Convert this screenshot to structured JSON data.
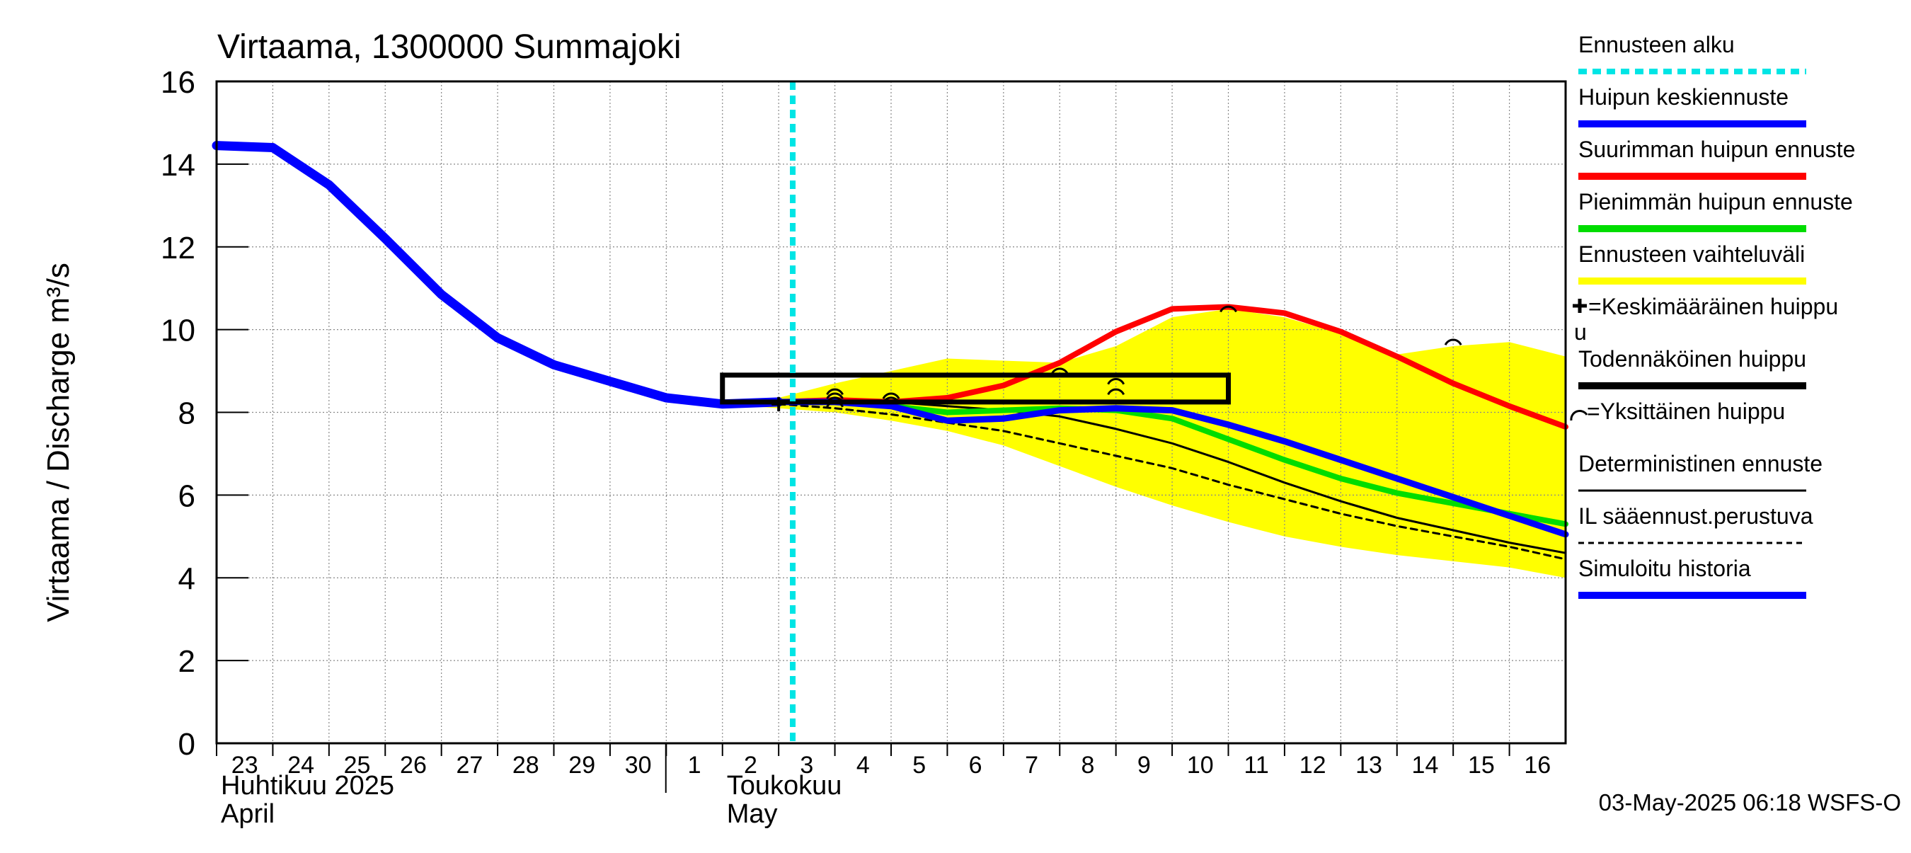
{
  "chart_data": {
    "type": "line",
    "title": "Virtaama, 1300000 Summajoki",
    "ylabel": "Virtaama / Discharge    m³/s",
    "ylim": [
      0,
      16
    ],
    "yticks": [
      0,
      2,
      4,
      6,
      8,
      10,
      12,
      14,
      16
    ],
    "grid": true,
    "legend_position": "right",
    "x_start": "2025-04-23",
    "x_end": "2025-05-17",
    "day_labels": [
      "23",
      "24",
      "25",
      "26",
      "27",
      "28",
      "29",
      "30",
      "1",
      "2",
      "3",
      "4",
      "5",
      "6",
      "7",
      "8",
      "9",
      "10",
      "11",
      "12",
      "13",
      "14",
      "15",
      "16"
    ],
    "month_labels": [
      {
        "fi": "Huhtikuu  2025",
        "en": "April",
        "date": "2025-04-23"
      },
      {
        "fi": "Toukokuu",
        "en": "May",
        "date": "2025-05-02"
      }
    ],
    "forecast_start": "2025-05-03T06:00",
    "timestamp": "03-May-2025 06:18 WSFS-O",
    "probable_peak_box": {
      "x0": "2025-05-02",
      "x1": "2025-05-11",
      "y0": 8.25,
      "y1": 8.9
    },
    "series": [
      {
        "name": "Ennusteen vaihteluväli",
        "kind": "band",
        "color": "#ffff00",
        "x": [
          "2025-05-02",
          "2025-05-03",
          "2025-05-04",
          "2025-05-05",
          "2025-05-06",
          "2025-05-07",
          "2025-05-08",
          "2025-05-09",
          "2025-05-10",
          "2025-05-11",
          "2025-05-12",
          "2025-05-13",
          "2025-05-14",
          "2025-05-15",
          "2025-05-16",
          "2025-05-17"
        ],
        "upper": [
          8.25,
          8.35,
          8.7,
          9.0,
          9.3,
          9.25,
          9.2,
          9.6,
          10.3,
          10.5,
          10.3,
          9.9,
          9.4,
          9.6,
          9.7,
          9.35
        ],
        "lower": [
          8.2,
          8.1,
          8.0,
          7.8,
          7.55,
          7.2,
          6.7,
          6.2,
          5.75,
          5.35,
          5.0,
          4.75,
          4.55,
          4.4,
          4.25,
          4.0
        ]
      },
      {
        "name": "Simuloitu historia",
        "color": "#0000ff",
        "x": [
          "2025-04-23",
          "2025-04-24",
          "2025-04-25",
          "2025-04-26",
          "2025-04-27",
          "2025-04-28",
          "2025-04-29",
          "2025-04-30",
          "2025-05-01",
          "2025-05-02",
          "2025-05-03"
        ],
        "values": [
          14.45,
          14.4,
          13.5,
          12.2,
          10.85,
          9.8,
          9.15,
          8.75,
          8.35,
          8.2,
          8.25
        ]
      },
      {
        "name": "Deterministinen ennuste",
        "color": "#000000",
        "x": [
          "2025-05-03",
          "2025-05-04",
          "2025-05-05",
          "2025-05-06",
          "2025-05-07",
          "2025-05-08",
          "2025-05-09",
          "2025-05-10",
          "2025-05-11",
          "2025-05-12",
          "2025-05-13",
          "2025-05-14",
          "2025-05-15",
          "2025-05-16",
          "2025-05-17"
        ],
        "values": [
          8.25,
          8.3,
          8.25,
          8.15,
          8.05,
          7.9,
          7.6,
          7.25,
          6.8,
          6.3,
          5.85,
          5.45,
          5.15,
          4.85,
          4.6
        ]
      },
      {
        "name": "IL sääennust.perustuva",
        "color": "#000000",
        "dashed": true,
        "x": [
          "2025-05-03",
          "2025-05-04",
          "2025-05-05",
          "2025-05-06",
          "2025-05-07",
          "2025-05-08",
          "2025-05-09",
          "2025-05-10",
          "2025-05-11",
          "2025-05-12",
          "2025-05-13",
          "2025-05-14",
          "2025-05-15",
          "2025-05-16",
          "2025-05-17"
        ],
        "values": [
          8.2,
          8.1,
          7.95,
          7.75,
          7.55,
          7.25,
          6.95,
          6.65,
          6.25,
          5.9,
          5.55,
          5.25,
          5.0,
          4.75,
          4.45
        ]
      },
      {
        "name": "Pienimmän huipun ennuste",
        "color": "#00dd00",
        "x": [
          "2025-05-03",
          "2025-05-04",
          "2025-05-05",
          "2025-05-06",
          "2025-05-07",
          "2025-05-08",
          "2025-05-09",
          "2025-05-10",
          "2025-05-11",
          "2025-05-12",
          "2025-05-13",
          "2025-05-14",
          "2025-05-15",
          "2025-05-16",
          "2025-05-17"
        ],
        "values": [
          8.25,
          8.25,
          8.15,
          8.0,
          8.05,
          8.1,
          8.05,
          7.85,
          7.35,
          6.85,
          6.4,
          6.05,
          5.8,
          5.55,
          5.3
        ]
      },
      {
        "name": "Suurimman huipun ennuste",
        "color": "#ff0000",
        "x": [
          "2025-05-03",
          "2025-05-04",
          "2025-05-05",
          "2025-05-06",
          "2025-05-07",
          "2025-05-08",
          "2025-05-09",
          "2025-05-10",
          "2025-05-11",
          "2025-05-12",
          "2025-05-13",
          "2025-05-14",
          "2025-05-15",
          "2025-05-16",
          "2025-05-17"
        ],
        "values": [
          8.25,
          8.3,
          8.25,
          8.35,
          8.65,
          9.2,
          9.95,
          10.5,
          10.55,
          10.4,
          9.95,
          9.35,
          8.7,
          8.15,
          7.65
        ]
      },
      {
        "name": "Huipun keskiennuste",
        "color": "#0000ff",
        "x": [
          "2025-05-03",
          "2025-05-04",
          "2025-05-05",
          "2025-05-06",
          "2025-05-07",
          "2025-05-08",
          "2025-05-09",
          "2025-05-10",
          "2025-05-11",
          "2025-05-12",
          "2025-05-13",
          "2025-05-14",
          "2025-05-15",
          "2025-05-16",
          "2025-05-17"
        ],
        "values": [
          8.25,
          8.25,
          8.15,
          7.8,
          7.85,
          8.05,
          8.1,
          8.05,
          7.7,
          7.3,
          6.85,
          6.4,
          5.95,
          5.5,
          5.05
        ]
      }
    ],
    "individual_peaks": [
      {
        "x": "2025-05-04",
        "y": 8.55
      },
      {
        "x": "2025-05-04",
        "y": 8.45
      },
      {
        "x": "2025-05-04",
        "y": 8.35
      },
      {
        "x": "2025-05-04",
        "y": 8.25
      },
      {
        "x": "2025-05-05",
        "y": 8.45
      },
      {
        "x": "2025-05-05",
        "y": 8.35
      },
      {
        "x": "2025-05-08",
        "y": 9.05
      },
      {
        "x": "2025-05-09",
        "y": 8.8
      },
      {
        "x": "2025-05-09",
        "y": 8.55
      },
      {
        "x": "2025-05-11",
        "y": 10.55
      },
      {
        "x": "2025-05-15",
        "y": 9.75
      }
    ],
    "mean_peak": {
      "x": "2025-05-03",
      "y": 8.2
    },
    "legend": [
      {
        "label": "Ennusteen alku",
        "style": "dotted",
        "color": "#00e5e5"
      },
      {
        "label": "Huipun keskiennuste",
        "style": "thick",
        "color": "#0000ff"
      },
      {
        "label": "Suurimman huipun ennuste",
        "style": "thick",
        "color": "#ff0000"
      },
      {
        "label": "Pienimmän huipun ennuste",
        "style": "thick",
        "color": "#00dd00"
      },
      {
        "label": "Ennusteen vaihteluväli",
        "style": "thick",
        "color": "#ffff00"
      },
      {
        "label": "=Keskimääräinen huippu",
        "label_wrap": "u",
        "style": "none",
        "symbol": "plus-icon",
        "color": "#000000"
      },
      {
        "label": "Todennäköinen huippu",
        "style": "thick",
        "color": "#000000"
      },
      {
        "label": "=Yksittäinen huippu",
        "style": "none",
        "symbol": "arc-icon",
        "color": "#000000"
      },
      {
        "label": "Deterministinen ennuste",
        "style": "thin",
        "color": "#000000"
      },
      {
        "label": "IL sääennust.perustuva",
        "style": "dashed",
        "color": "#000000"
      },
      {
        "label": "Simuloitu historia",
        "style": "thick",
        "color": "#0000ff"
      }
    ]
  }
}
